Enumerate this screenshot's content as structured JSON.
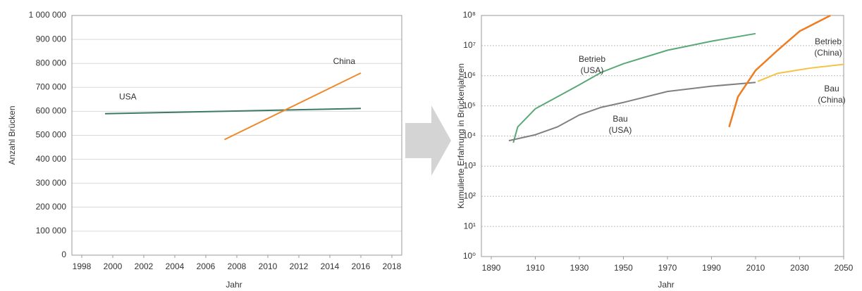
{
  "chart_data": [
    {
      "type": "line",
      "x_label": "Jahr",
      "y_label": "Anzahl Brücken",
      "xlim": [
        1998,
        2018
      ],
      "xticks": [
        1998,
        2000,
        2002,
        2004,
        2006,
        2008,
        2010,
        2012,
        2014,
        2016,
        2018
      ],
      "ylim": [
        0,
        1000000
      ],
      "yticks": [
        0,
        {
          "value": 100000,
          "label": "100 000"
        },
        {
          "value": 200000,
          "label": "200 000"
        },
        {
          "value": 300000,
          "label": "300 000"
        },
        {
          "value": 400000,
          "label": "400 000"
        },
        {
          "value": 500000,
          "label": "500 000"
        },
        {
          "value": 600000,
          "label": "600 000"
        },
        {
          "value": 700000,
          "label": "700 000"
        },
        {
          "value": 800000,
          "label": "800 000"
        },
        {
          "value": 900000,
          "label": "900 000"
        },
        {
          "value": 1000000,
          "label": "1 000 000"
        }
      ],
      "grid": true,
      "log_scale": false,
      "series": [
        {
          "label": [
            "USA"
          ],
          "color": "#3d7a66",
          "x": [
            1999.5,
            2016
          ],
          "values": [
            590000,
            612000
          ]
        },
        {
          "label": [
            "China"
          ],
          "color": "#ee8a2c",
          "x": [
            2007.2,
            2016
          ],
          "values": [
            482000,
            760000
          ]
        }
      ]
    },
    {
      "type": "line",
      "x_label": "Jahr",
      "y_label": "Kumulierte Erfahrung in Brückenjahren",
      "xlim": [
        1890,
        2050
      ],
      "xticks": [
        1890,
        1910,
        1930,
        1950,
        1970,
        1990,
        2010,
        2030,
        2050
      ],
      "ylim": [
        1,
        100000000
      ],
      "yticks": [
        {
          "value": 1,
          "label": "10⁰"
        },
        {
          "value": 10,
          "label": "10¹"
        },
        {
          "value": 100,
          "label": "10²"
        },
        {
          "value": 1000,
          "label": "10³"
        },
        {
          "value": 10000,
          "label": "10⁴"
        },
        {
          "value": 100000,
          "label": "10⁵"
        },
        {
          "value": 1000000,
          "label": "10⁶"
        },
        {
          "value": 10000000,
          "label": "10⁷"
        },
        {
          "value": 100000000,
          "label": "10⁸"
        }
      ],
      "grid": true,
      "log_scale": true,
      "series": [
        {
          "label": [
            "Betrieb",
            "(USA)"
          ],
          "color": "#5aa878",
          "x": [
            1900,
            1902,
            1910,
            1920,
            1930,
            1940,
            1950,
            1970,
            1990,
            2010
          ],
          "values": [
            6000,
            20000,
            80000,
            200000,
            500000,
            1300000,
            2500000,
            7000000,
            14000000,
            25000000
          ]
        },
        {
          "label": [
            "Bau",
            "(USA)"
          ],
          "color": "#808080",
          "x": [
            1898,
            1910,
            1920,
            1930,
            1940,
            1950,
            1970,
            1990,
            2010
          ],
          "values": [
            7000,
            11000,
            20000,
            50000,
            90000,
            130000,
            300000,
            450000,
            600000
          ]
        },
        {
          "label": [
            "Betrieb",
            "(China)"
          ],
          "color": "#ee7d22",
          "x": [
            1998,
            2002,
            2010,
            2020,
            2030,
            2044
          ],
          "values": [
            20000,
            200000,
            1500000,
            7000000,
            30000000,
            100000000
          ]
        },
        {
          "label": [
            "Bau",
            "(China)"
          ],
          "color": "#f5c242",
          "x": [
            2011,
            2020,
            2035,
            2050
          ],
          "values": [
            650000,
            1200000,
            1800000,
            2400000
          ]
        }
      ]
    }
  ]
}
